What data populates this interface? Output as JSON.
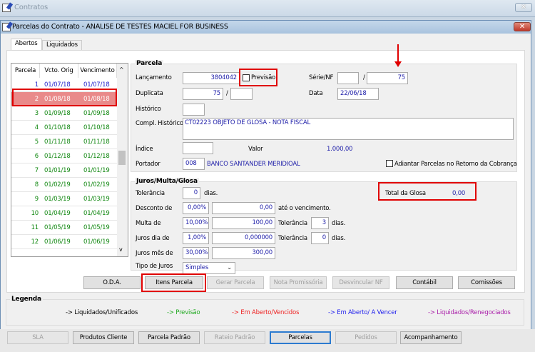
{
  "outer_window": {
    "title": "Contratos"
  },
  "window": {
    "title": "Parcelas do Contrato - ANALISE DE TESTES MACIEL FOR BUSINESS"
  },
  "tabs": [
    {
      "label": "Abertos",
      "active": true
    },
    {
      "label": "Liquidados",
      "active": false
    }
  ],
  "grid": {
    "headers": [
      "Parcela",
      "Vcto. Orig",
      "Vencimento"
    ],
    "rows": [
      {
        "parcela": "1",
        "vcto_orig": "01/07/18",
        "vencimento": "01/07/18",
        "color": "#2222cc"
      },
      {
        "parcela": "2",
        "vcto_orig": "01/08/18",
        "vencimento": "01/08/18",
        "color": "#ffffff",
        "selected": true
      },
      {
        "parcela": "3",
        "vcto_orig": "01/09/18",
        "vencimento": "01/09/18",
        "color": "#118811"
      },
      {
        "parcela": "4",
        "vcto_orig": "01/10/18",
        "vencimento": "01/10/18",
        "color": "#118811"
      },
      {
        "parcela": "5",
        "vcto_orig": "01/11/18",
        "vencimento": "01/11/18",
        "color": "#118811"
      },
      {
        "parcela": "6",
        "vcto_orig": "01/12/18",
        "vencimento": "01/12/18",
        "color": "#118811"
      },
      {
        "parcela": "7",
        "vcto_orig": "01/01/19",
        "vencimento": "01/01/19",
        "color": "#118811"
      },
      {
        "parcela": "8",
        "vcto_orig": "01/02/19",
        "vencimento": "01/02/19",
        "color": "#118811"
      },
      {
        "parcela": "9",
        "vcto_orig": "01/03/19",
        "vencimento": "01/03/19",
        "color": "#118811"
      },
      {
        "parcela": "10",
        "vcto_orig": "01/04/19",
        "vencimento": "01/04/19",
        "color": "#118811"
      },
      {
        "parcela": "11",
        "vcto_orig": "01/05/19",
        "vencimento": "01/05/19",
        "color": "#118811"
      },
      {
        "parcela": "12",
        "vcto_orig": "01/06/19",
        "vencimento": "01/06/19",
        "color": "#118811"
      }
    ]
  },
  "parcela": {
    "title": "Parcela",
    "lancamento_label": "Lançamento",
    "lancamento": "3804042",
    "previsao_label": "Previsão",
    "previsao_checked": false,
    "serie_nf_label": "Série/NF",
    "serie": "",
    "nf": "75",
    "slash": "/",
    "duplicata_label": "Duplicata",
    "duplicata": "75",
    "duplicata2": "",
    "data_label": "Data",
    "data": "22/06/18",
    "historico_label": "Histórico",
    "historico": "",
    "compl_historico_label": "Compl. Histórico",
    "compl_historico": "CT02223 OBJETO DE GLOSA - NOTA FISCAL",
    "indice_label": "Índice",
    "indice": "",
    "valor_label": "Valor",
    "valor": "1.000,00",
    "portador_label": "Portador",
    "portador_code": "008",
    "portador_name": "BANCO SANTANDER MERIDIOAL",
    "adiantar_label": "Adiantar Parcelas no Retorno da Cobrança",
    "adiantar_checked": false
  },
  "juros": {
    "title": "Juros/Multa/Glosa",
    "tolerancia_label": "Tolerância",
    "tolerancia": "0",
    "dias": "dias.",
    "total_glosa_label": "Total da Glosa",
    "total_glosa": "0,00",
    "desconto_label": "Desconto de",
    "desconto_pct": "0,00%",
    "desconto_val": "0,00",
    "ate_venc": "até o vencimento.",
    "multa_label": "Multa de",
    "multa_pct": "10,00%",
    "multa_val": "100,00",
    "multa_tol": "3",
    "juros_dia_label": "Juros dia de",
    "juros_dia_pct": "1,00%",
    "juros_dia_val": "0,000000",
    "juros_dia_tol": "0",
    "juros_mes_label": "Juros mês de",
    "juros_mes_pct": "30,00%",
    "juros_mes_val": "300,00",
    "tipo_label": "Tipo de Juros",
    "tipo": "Simples"
  },
  "actions": {
    "oda": "O.D.A.",
    "itens": "Itens Parcela",
    "gerar": "Gerar Parcela",
    "nota": "Nota Promissória",
    "desvincular": "Desvincular NF",
    "contabil": "Contábil",
    "comissoes": "Comissões"
  },
  "legend": {
    "title": "Legenda",
    "items": [
      {
        "label": "-> Liquidados/Unificados",
        "color": "#000000"
      },
      {
        "label": "-> Previsão",
        "color": "#22aa22"
      },
      {
        "label": "-> Em Aberto/Vencidos",
        "color": "#ee2222"
      },
      {
        "label": "-> Em Aberto/ A Vencer",
        "color": "#2222ee"
      },
      {
        "label": "-> Liquidados/Renegociados",
        "color": "#aa22aa"
      }
    ]
  },
  "bottom": {
    "sla": "SLA",
    "produtos": "Produtos Cliente",
    "parcela_padrao": "Parcela Padrão",
    "rateio": "Rateio Padrão",
    "parcelas": "Parcelas",
    "pedidos": "Pedidos",
    "acompanhamento": "Acompanhamento"
  },
  "annotation_color": "#e00000"
}
